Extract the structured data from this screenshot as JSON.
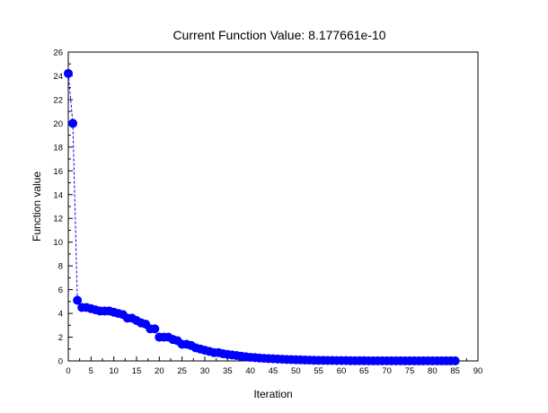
{
  "chart_data": {
    "type": "line",
    "title": "Current Function Value: 8.177661e-10",
    "xlabel": "Iteration",
    "ylabel": "Function value",
    "xlim": [
      0,
      90
    ],
    "ylim": [
      0,
      26
    ],
    "xticks": [
      0,
      5,
      10,
      15,
      20,
      25,
      30,
      35,
      40,
      45,
      50,
      55,
      60,
      65,
      70,
      75,
      80,
      85,
      90
    ],
    "yticks": [
      0,
      2,
      4,
      6,
      8,
      10,
      12,
      14,
      16,
      18,
      20,
      22,
      24,
      26
    ],
    "grid": false,
    "line_style": "dashed",
    "marker": "filled-circle",
    "color": "#0000ff",
    "series": [
      {
        "x": [
          0,
          1,
          2,
          3,
          4,
          5,
          6,
          7,
          8,
          9,
          10,
          11,
          12,
          13,
          14,
          15,
          16,
          17,
          18,
          19,
          20,
          21,
          22,
          23,
          24,
          25,
          26,
          27,
          28,
          29,
          30,
          31,
          32,
          33,
          34,
          35,
          36,
          37,
          38,
          39,
          40,
          41,
          42,
          43,
          44,
          45,
          46,
          47,
          48,
          49,
          50,
          51,
          52,
          53,
          54,
          55,
          56,
          57,
          58,
          59,
          60,
          61,
          62,
          63,
          64,
          65,
          66,
          67,
          68,
          69,
          70,
          71,
          72,
          73,
          74,
          75,
          76,
          77,
          78,
          79,
          80,
          81,
          82,
          83,
          84,
          85
        ],
        "y": [
          24.2,
          20.0,
          5.1,
          4.5,
          4.5,
          4.4,
          4.3,
          4.2,
          4.2,
          4.2,
          4.1,
          4.0,
          3.9,
          3.6,
          3.6,
          3.4,
          3.2,
          3.1,
          2.7,
          2.7,
          2.0,
          2.0,
          2.0,
          1.8,
          1.7,
          1.4,
          1.4,
          1.3,
          1.1,
          1.0,
          0.9,
          0.8,
          0.7,
          0.7,
          0.6,
          0.55,
          0.5,
          0.45,
          0.4,
          0.35,
          0.3,
          0.28,
          0.25,
          0.22,
          0.2,
          0.18,
          0.16,
          0.14,
          0.12,
          0.11,
          0.1,
          0.09,
          0.08,
          0.07,
          0.06,
          0.05,
          0.05,
          0.04,
          0.04,
          0.03,
          0.03,
          0.03,
          0.02,
          0.02,
          0.02,
          0.02,
          0.01,
          0.01,
          0.01,
          0.01,
          0.01,
          0.01,
          0.01,
          0.01,
          0.005,
          0.005,
          0.005,
          0.005,
          0.005,
          0.005,
          0.005,
          0.005,
          0.005,
          0.005,
          0.005,
          0.005
        ]
      }
    ]
  }
}
